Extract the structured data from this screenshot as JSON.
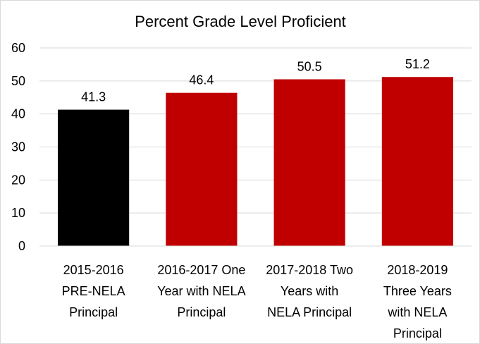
{
  "chart_data": {
    "type": "bar",
    "title": "Percent Grade Level Proficient",
    "xlabel": "",
    "ylabel": "",
    "ylim": [
      0,
      60
    ],
    "yticks": [
      0,
      10,
      20,
      30,
      40,
      50,
      60
    ],
    "grid": true,
    "legend": "none",
    "categories": [
      [
        "2015-2016",
        "PRE-NELA",
        "Principal"
      ],
      [
        "2016-2017 One",
        "Year with NELA",
        "Principal"
      ],
      [
        "2017-2018 Two",
        "Years with",
        "NELA Principal"
      ],
      [
        "2018-2019",
        "Three Years",
        "with NELA",
        "Principal"
      ]
    ],
    "values": [
      41.3,
      46.4,
      50.5,
      51.2
    ],
    "data_labels": [
      "41.3",
      "46.4",
      "50.5",
      "51.2"
    ],
    "bar_colors": [
      "#000000",
      "#c00000",
      "#c00000",
      "#c00000"
    ],
    "gridline_color": "#d9d9d9"
  }
}
